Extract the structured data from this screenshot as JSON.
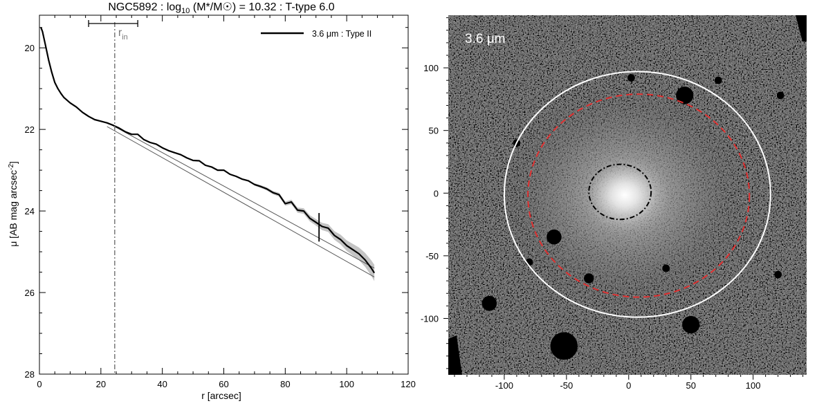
{
  "chart_data": [
    {
      "type": "line",
      "title": "NGC5892 : log₁₀ (M*/M☉) = 10.32 : T-type 6.0",
      "xlabel": "r [arcsec]",
      "ylabel": "μ [AB mag arcsec⁻²]",
      "xlim": [
        0,
        120
      ],
      "ylim": [
        28,
        19.2
      ],
      "y_inverted": true,
      "xticks": [
        "0",
        "20",
        "40",
        "60",
        "80",
        "100",
        "120"
      ],
      "yticks": [
        "20",
        "22",
        "24",
        "26",
        "28"
      ],
      "x_minor_step": 5,
      "y_minor_step": 0.5,
      "legend": {
        "entries": [
          {
            "label": "3.6 μm : Type II",
            "color": "#000000"
          }
        ],
        "placement": "top-right"
      },
      "annotations": {
        "r_in_label": "r",
        "r_in_subscript": "in",
        "r_in": 24.5,
        "r_in_interval": [
          16.0,
          32.0
        ],
        "break_marker_r": 91.0,
        "break_marker_mu": [
          24.05,
          24.75
        ]
      },
      "series": [
        {
          "name": "3.6 μm : Type II",
          "color": "#000000",
          "x": [
            0.5,
            1,
            2,
            3,
            4,
            5,
            6,
            7,
            8,
            10,
            12,
            14,
            16,
            18,
            20,
            22,
            24,
            26,
            28,
            30,
            32,
            34,
            36,
            38,
            40,
            42,
            44,
            46,
            48,
            50,
            52,
            54,
            56,
            58,
            60,
            62,
            64,
            66,
            68,
            70,
            72,
            74,
            76,
            78,
            80,
            82,
            84,
            86,
            88,
            90,
            92,
            94,
            96,
            98,
            100,
            102,
            104,
            106,
            108,
            109
          ],
          "y": [
            19.5,
            19.6,
            19.95,
            20.3,
            20.6,
            20.85,
            21.0,
            21.12,
            21.22,
            21.35,
            21.45,
            21.58,
            21.68,
            21.76,
            21.8,
            21.84,
            21.9,
            21.97,
            22.06,
            22.12,
            22.12,
            22.25,
            22.32,
            22.36,
            22.45,
            22.52,
            22.57,
            22.62,
            22.7,
            22.76,
            22.77,
            22.88,
            22.92,
            23.0,
            23.0,
            23.1,
            23.15,
            23.22,
            23.26,
            23.35,
            23.4,
            23.46,
            23.55,
            23.6,
            23.82,
            23.78,
            23.98,
            24.0,
            24.18,
            24.28,
            24.38,
            24.42,
            24.6,
            24.7,
            24.85,
            24.95,
            25.05,
            25.2,
            25.4,
            25.52
          ],
          "band": {
            "color": "#c4c4c4",
            "x": [
              70,
              80,
              90,
              95,
              100,
              105,
              109
            ],
            "halfwidth": [
              0.03,
              0.05,
              0.08,
              0.1,
              0.13,
              0.16,
              0.2
            ]
          }
        },
        {
          "color": "#555555",
          "x": [
            22,
            109
          ],
          "y": [
            21.83,
            25.4
          ]
        },
        {
          "color": "#555555",
          "x": [
            22,
            109
          ],
          "y": [
            21.93,
            25.62
          ]
        }
      ]
    },
    {
      "type": "heatmap",
      "title": "3.6 μm",
      "xlim": [
        -145,
        143
      ],
      "ylim": [
        -145,
        142
      ],
      "xticks": [
        "-100",
        "-50",
        "0",
        "50",
        "100"
      ],
      "yticks": [
        "100",
        "50",
        "0",
        "-50",
        "-100"
      ],
      "x_minor_step": 10,
      "y_minor_step": 10,
      "colormap": "grayscale",
      "background_color": "#000000",
      "ellipses": [
        {
          "name": "outer",
          "color": "#ffffff",
          "style": "solid",
          "cx": 7,
          "cy": -1,
          "rx": 107,
          "ry": 98
        },
        {
          "name": "disk",
          "color": "#e03030",
          "style": "dashed",
          "cx": 8,
          "cy": -2,
          "rx": 89,
          "ry": 81
        },
        {
          "name": "inner",
          "color": "#000000",
          "style": "dash-dot",
          "cx": -7,
          "cy": 1,
          "rx": 25,
          "ry": 22
        }
      ],
      "masked_sources": [
        {
          "x": 45,
          "y": 78,
          "r": 7
        },
        {
          "x": -60,
          "y": -35,
          "r": 6
        },
        {
          "x": -32,
          "y": -68,
          "r": 4
        },
        {
          "x": 50,
          "y": -105,
          "r": 7
        },
        {
          "x": -52,
          "y": -122,
          "r": 11
        },
        {
          "x": -112,
          "y": -88,
          "r": 6
        },
        {
          "x": -80,
          "y": -55,
          "r": 3
        },
        {
          "x": 30,
          "y": -60,
          "r": 3
        },
        {
          "x": 120,
          "y": -65,
          "r": 3
        },
        {
          "x": 122,
          "y": 78,
          "r": 3
        },
        {
          "x": 72,
          "y": 90,
          "r": 3
        },
        {
          "x": 2,
          "y": 92,
          "r": 3
        },
        {
          "x": -90,
          "y": 40,
          "r": 3
        }
      ]
    }
  ]
}
